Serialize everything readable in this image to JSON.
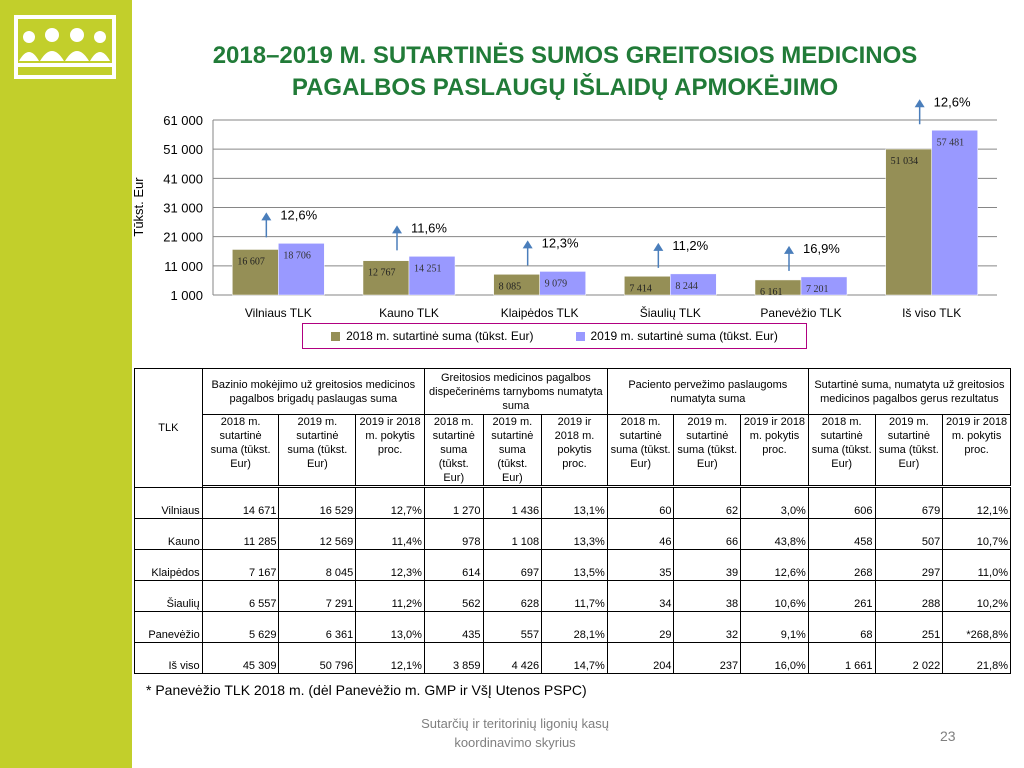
{
  "slide": {
    "title_line1": "2018–2019 M. SUTARTINĖS SUMOS GREITOSIOS MEDICINOS",
    "title_line2": "PAGALBOS PASLAUGŲ IŠLAIDŲ APMOKĖJIMO",
    "footnote": "* Panevėžio TLK 2018 m. (dėl Panevėžio m. GMP  ir VšĮ Utenos PSPC)",
    "footer_line1": "Sutarčių ir teritorinių ligonių kasų",
    "footer_line2": "koordinavimo skyrius",
    "page_number": "23"
  },
  "colors": {
    "sidebar": "#c2cf2b",
    "title": "#217b38",
    "series_2018": "#958f56",
    "series_2019": "#9999ff",
    "arrow": "#4a7ebb"
  },
  "chart_data": {
    "type": "bar",
    "ylabel": "Tūkst. Eur",
    "ylim": [
      1000,
      61000
    ],
    "yticks": [
      "1 000",
      "11 000",
      "21 000",
      "31 000",
      "41 000",
      "51 000",
      "61 000"
    ],
    "grid": true,
    "legend_position": "bottom",
    "categories": [
      "Vilniaus TLK",
      "Kauno TLK",
      "Klaipėdos TLK",
      "Šiaulių TLK",
      "Panevėžio TLK",
      "Iš viso TLK"
    ],
    "series": [
      {
        "name": "2018 m. sutartinė suma (tūkst. Eur)",
        "values": [
          16607,
          12767,
          8085,
          7414,
          6161,
          51034
        ],
        "labels": [
          "16 607",
          "12 767",
          "8 085",
          "7 414",
          "6 161",
          "51 034"
        ]
      },
      {
        "name": "2019 m. sutartinė suma (tūkst. Eur)",
        "values": [
          18706,
          14251,
          9079,
          8244,
          7201,
          57481
        ],
        "labels": [
          "18 706",
          "14 251",
          "9 079",
          "8 244",
          "7 201",
          "57 481"
        ]
      }
    ],
    "change_labels": [
      "12,6%",
      "11,6%",
      "12,3%",
      "11,2%",
      "16,9%",
      "12,6%"
    ]
  },
  "table": {
    "tlk_header": "TLK",
    "group_headers": [
      "Bazinio mokėjimo už greitosios medicinos pagalbos brigadų paslaugas suma",
      "Greitosios medicinos pagalbos dispečerinėms tarnyboms numatyta suma",
      "Paciento pervežimo paslaugoms numatyta suma",
      "Sutartinė suma, numatyta už greitosios medicinos pagalbos gerus rezultatus"
    ],
    "sub_headers": [
      "2018 m. sutartinė suma (tūkst. Eur)",
      "2019 m. sutartinė suma (tūkst. Eur)",
      "2019 ir 2018 m. pokytis proc.",
      "2018 m. sutartinė suma (tūkst. Eur)",
      "2019 m. sutartinė suma (tūkst. Eur)",
      "2019 ir 2018 m. pokytis proc.",
      "2018 m. sutartinė suma (tūkst. Eur)",
      "2019 m. sutartinė suma (tūkst. Eur)",
      "2019 ir 2018 m. pokytis proc.",
      "2018 m. sutartinė suma (tūkst. Eur)",
      "2019 m. sutartinė suma (tūkst. Eur)",
      "2019 ir 2018 m. pokytis proc."
    ],
    "rows": [
      {
        "label": "Vilniaus",
        "cells": [
          "14 671",
          "16 529",
          "12,7%",
          "1 270",
          "1 436",
          "13,1%",
          "60",
          "62",
          "3,0%",
          "606",
          "679",
          "12,1%"
        ]
      },
      {
        "label": "Kauno",
        "cells": [
          "11 285",
          "12 569",
          "11,4%",
          "978",
          "1 108",
          "13,3%",
          "46",
          "66",
          "43,8%",
          "458",
          "507",
          "10,7%"
        ]
      },
      {
        "label": "Klaipėdos",
        "cells": [
          "7 167",
          "8 045",
          "12,3%",
          "614",
          "697",
          "13,5%",
          "35",
          "39",
          "12,6%",
          "268",
          "297",
          "11,0%"
        ]
      },
      {
        "label": "Šiaulių",
        "cells": [
          "6 557",
          "7 291",
          "11,2%",
          "562",
          "628",
          "11,7%",
          "34",
          "38",
          "10,6%",
          "261",
          "288",
          "10,2%"
        ]
      },
      {
        "label": "Panevėžio",
        "cells": [
          "5 629",
          "6 361",
          "13,0%",
          "435",
          "557",
          "28,1%",
          "29",
          "32",
          "9,1%",
          "68",
          "251",
          "*268,8%"
        ]
      },
      {
        "label": "Iš viso",
        "cells": [
          "45 309",
          "50 796",
          "12,1%",
          "3 859",
          "4 426",
          "14,7%",
          "204",
          "237",
          "16,0%",
          "1 661",
          "2 022",
          "21,8%"
        ]
      }
    ]
  }
}
